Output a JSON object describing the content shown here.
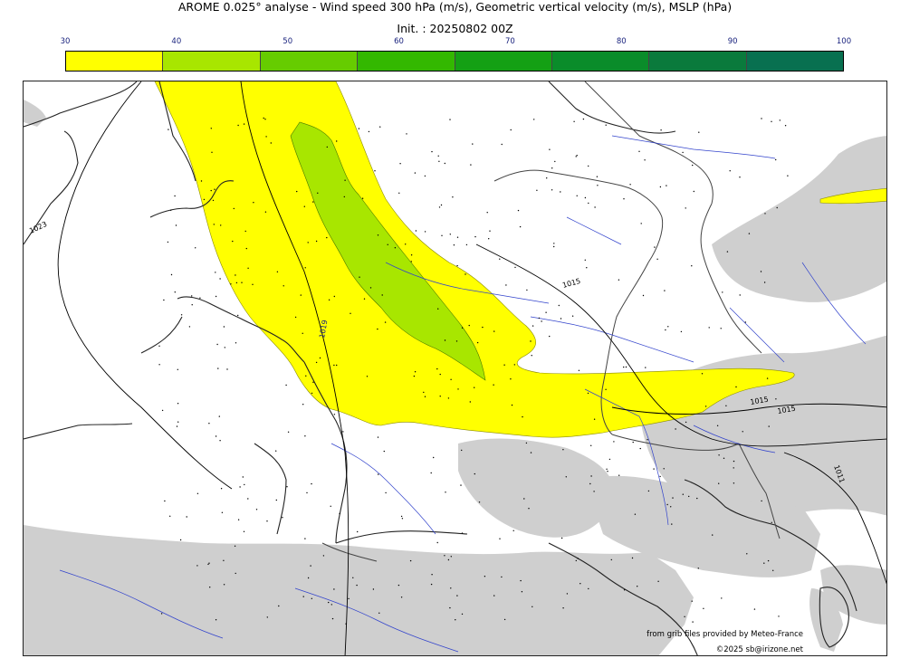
{
  "title": "AROME 0.025° analyse - Wind speed 300 hPa (m/s), Geometric vertical velocity (m/s), MSLP (hPa)",
  "init": "Init. : 20250802 00Z",
  "colorbar": {
    "ticks": [
      "30",
      "40",
      "50",
      "60",
      "70",
      "80",
      "90",
      "100"
    ],
    "colors": [
      "#ffff00",
      "#a8e600",
      "#66cc00",
      "#33b800",
      "#14a014",
      "#0a8c2a",
      "#0a7a3c",
      "#087050"
    ]
  },
  "isobars": [
    "1023",
    "1015",
    "1019",
    "1015",
    "1015",
    "1011"
  ],
  "credits": {
    "line1": "from grib files provided by Meteo-France",
    "line2": "©2025 sb@irizone.net"
  }
}
